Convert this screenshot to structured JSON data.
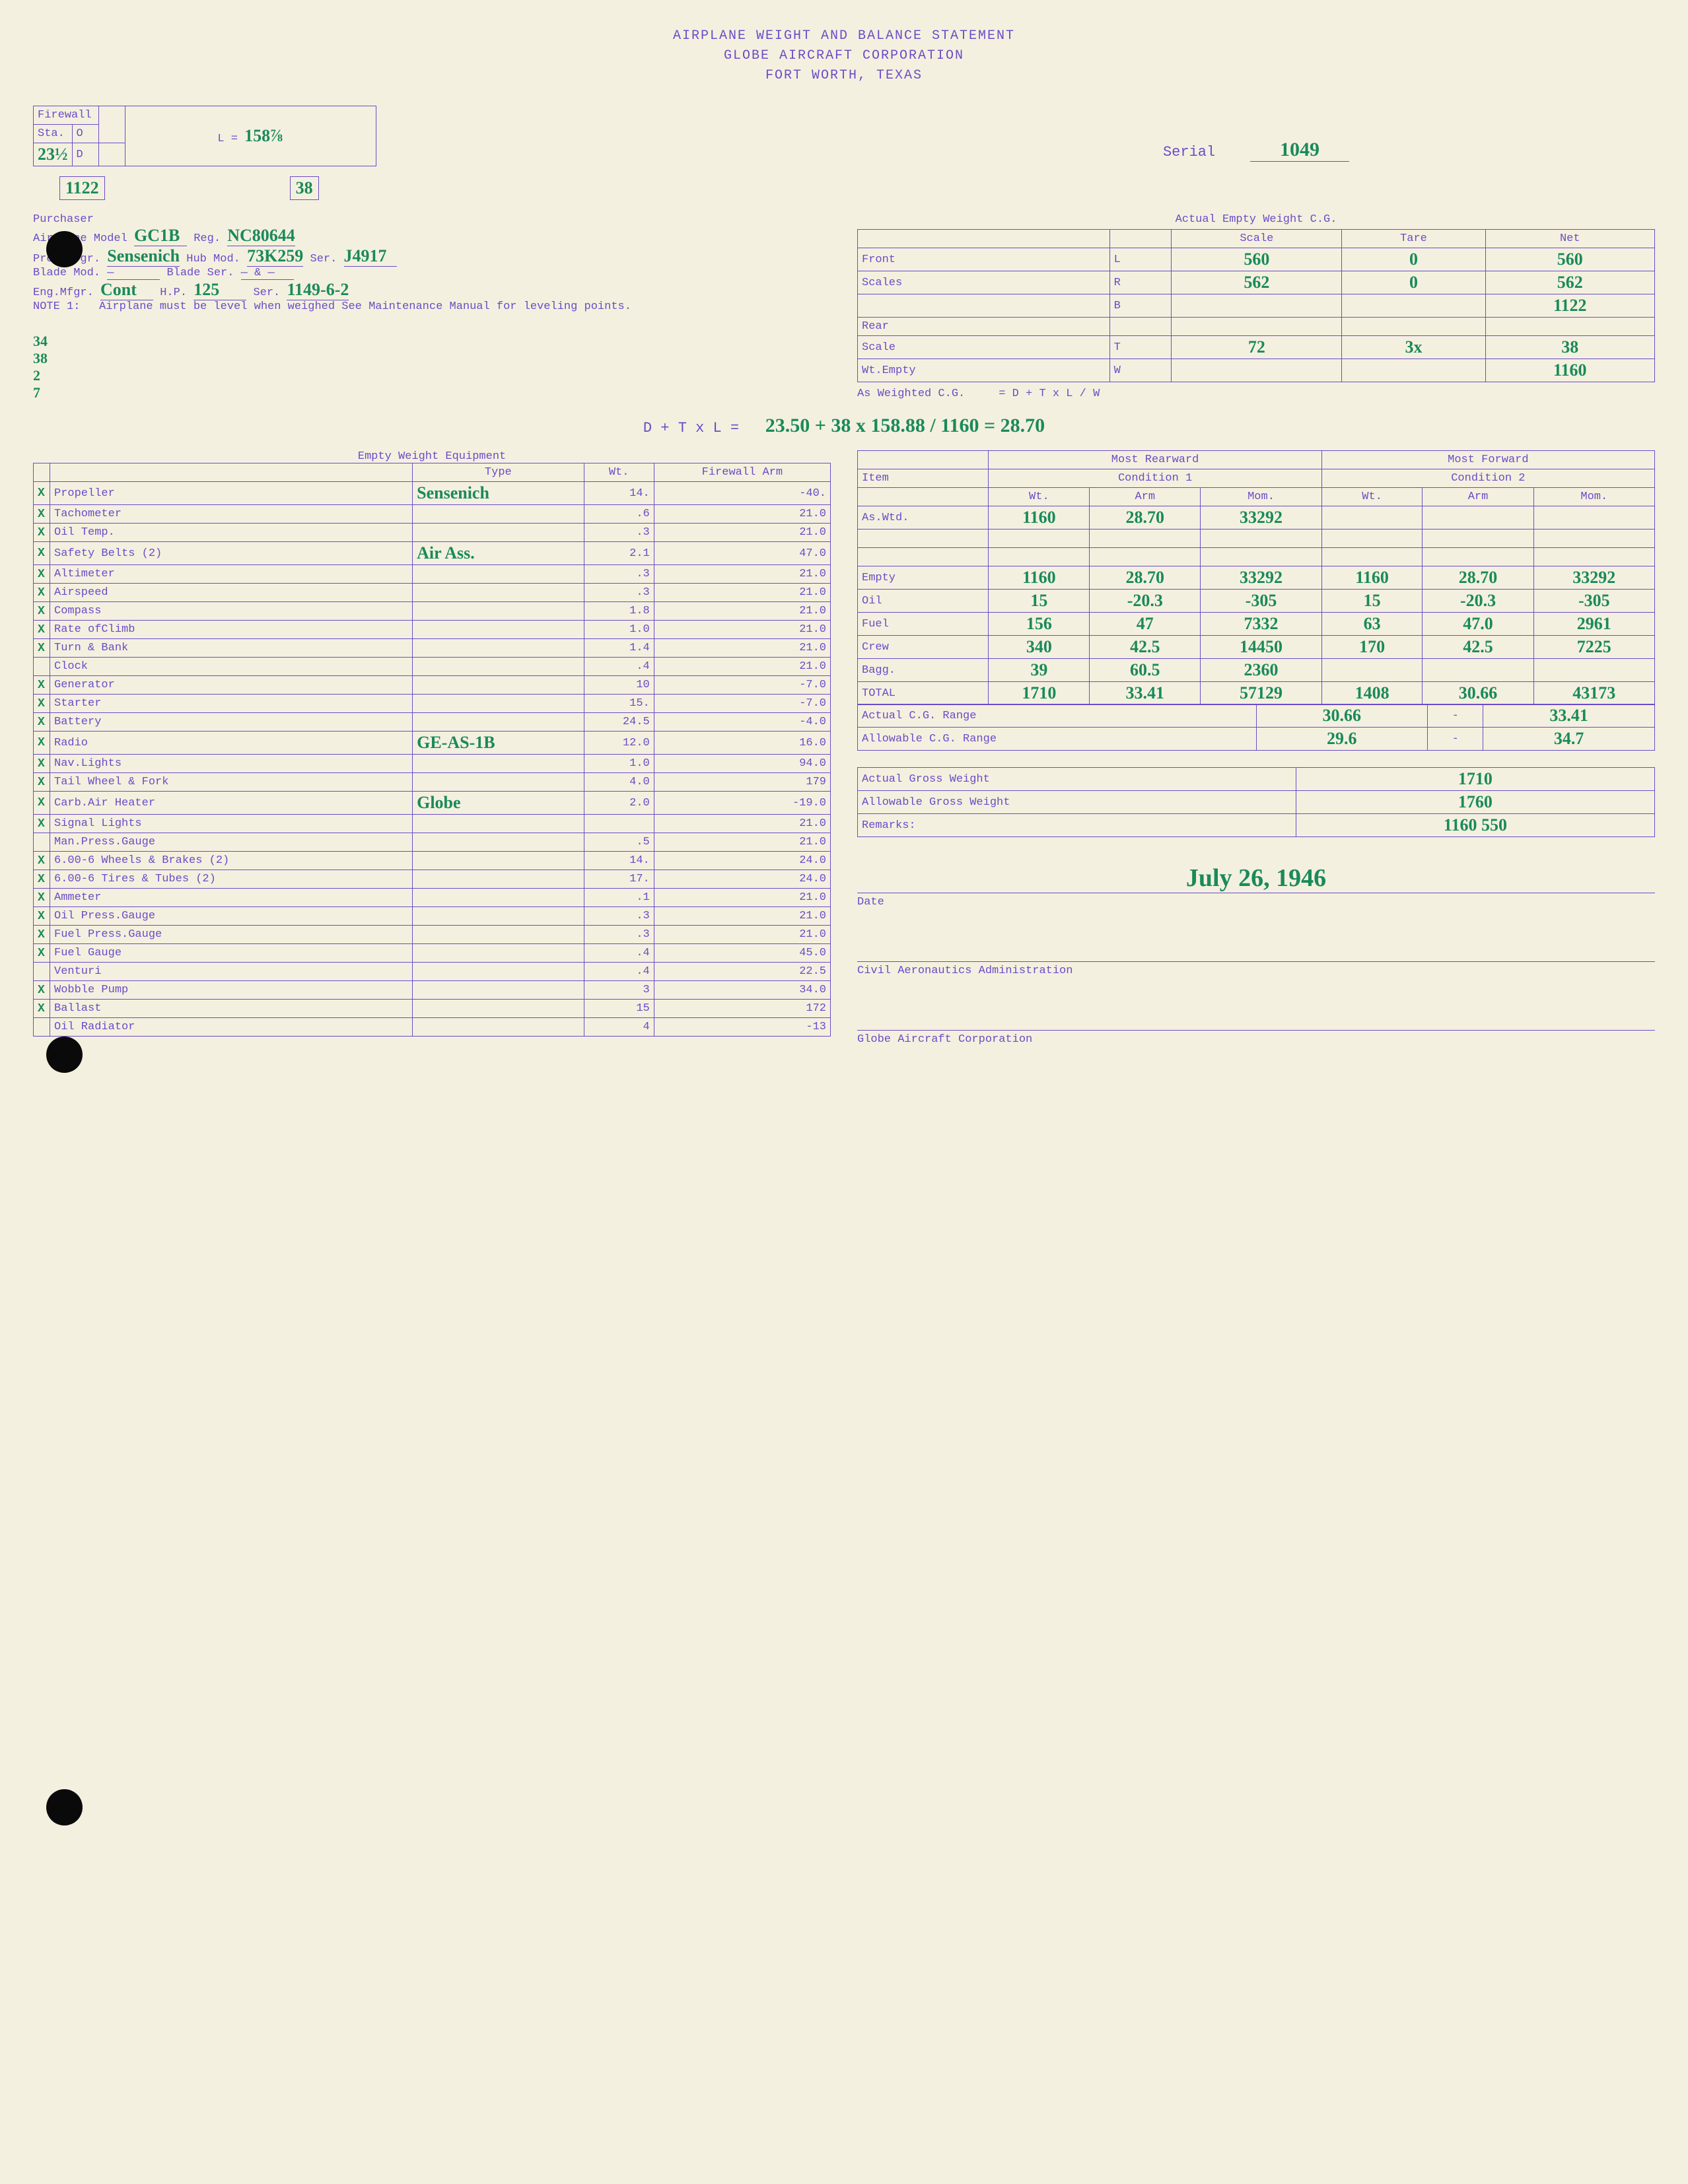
{
  "header": {
    "line1": "AIRPLANE WEIGHT AND BALANCE STATEMENT",
    "line2": "GLOBE AIRCRAFT CORPORATION",
    "line3": "FORT WORTH, TEXAS"
  },
  "firewall": {
    "label": "Firewall",
    "sta_label": "Sta.",
    "sta_value": "23½",
    "o_label": "O",
    "d_label": "D",
    "l_label": "L =",
    "l_value": "158⅞",
    "box1": "1122",
    "box2": "38"
  },
  "serial": {
    "label": "Serial",
    "value": "1049"
  },
  "aircraft": {
    "purchaser_label": "Purchaser",
    "model_label": "Airplane Model",
    "model_value": "GC1B",
    "reg_label": "Reg.",
    "reg_value": "NC80644",
    "prop_mfgr_label": "Prop.Mfgr.",
    "prop_mfgr_value": "Sensenich",
    "hub_mod_label": "Hub Mod.",
    "hub_mod_value": "73K259",
    "ser1_label": "Ser.",
    "ser1_value": "J4917",
    "blade_mod_label": "Blade Mod.",
    "blade_mod_value": "—",
    "blade_ser_label": "Blade Ser.",
    "blade_ser_value": "— & —",
    "eng_mfgr_label": "Eng.Mfgr.",
    "eng_mfgr_value": "Cont",
    "hp_label": "H.P.",
    "hp_value": "125",
    "ser2_label": "Ser.",
    "ser2_value": "1149-6-2",
    "note_label": "NOTE 1:",
    "note_text": "Airplane must be level when weighed See Maintenance Manual for leveling points."
  },
  "side_calc": "34\n38\n2\n7",
  "empty_weight_cg": {
    "title": "Actual Empty Weight C.G.",
    "cols": [
      "",
      "",
      "Scale",
      "Tare",
      "Net"
    ],
    "rows": [
      [
        "Front",
        "L",
        "560",
        "0",
        "560"
      ],
      [
        "Scales",
        "R",
        "562",
        "0",
        "562"
      ],
      [
        "",
        "B",
        "",
        "",
        "1122"
      ],
      [
        "Rear",
        "",
        "",
        "",
        ""
      ],
      [
        "Scale",
        "T",
        "72",
        "3x",
        "38"
      ],
      [
        "Wt.Empty",
        "W",
        "",
        "",
        "1160"
      ]
    ],
    "formula_label": "As Weighted C.G.",
    "formula": "= D + T x L / W"
  },
  "main_calc": {
    "lhs": "D + T x L =",
    "rhs": "23.50 + 38 x 158.88 / 1160 = 28.70"
  },
  "equipment": {
    "title": "Empty Weight Equipment",
    "cols": [
      "",
      "Type",
      "Wt.",
      "Firewall Arm"
    ],
    "rows": [
      {
        "ck": "X",
        "name": "Propeller",
        "type": "Sensenich",
        "wt": "14.",
        "arm": "-40."
      },
      {
        "ck": "X",
        "name": "Tachometer",
        "type": "",
        "wt": ".6",
        "arm": "21.0"
      },
      {
        "ck": "X",
        "name": "Oil Temp.",
        "type": "",
        "wt": ".3",
        "arm": "21.0"
      },
      {
        "ck": "X",
        "name": "Safety Belts (2)",
        "type": "Air Ass.",
        "wt": "2.1",
        "arm": "47.0"
      },
      {
        "ck": "X",
        "name": "Altimeter",
        "type": "",
        "wt": ".3",
        "arm": "21.0"
      },
      {
        "ck": "X",
        "name": "Airspeed",
        "type": "",
        "wt": ".3",
        "arm": "21.0"
      },
      {
        "ck": "X",
        "name": "Compass",
        "type": "",
        "wt": "1.8",
        "arm": "21.0"
      },
      {
        "ck": "X",
        "name": "Rate ofClimb",
        "type": "",
        "wt": "1.0",
        "arm": "21.0"
      },
      {
        "ck": "X",
        "name": "Turn & Bank",
        "type": "",
        "wt": "1.4",
        "arm": "21.0"
      },
      {
        "ck": "",
        "name": "Clock",
        "type": "",
        "wt": ".4",
        "arm": "21.0"
      },
      {
        "ck": "X",
        "name": "Generator",
        "type": "",
        "wt": "10",
        "arm": "-7.0"
      },
      {
        "ck": "X",
        "name": "Starter",
        "type": "",
        "wt": "15.",
        "arm": "-7.0"
      },
      {
        "ck": "X",
        "name": "Battery",
        "type": "",
        "wt": "24.5",
        "arm": "-4.0"
      },
      {
        "ck": "X",
        "name": "Radio",
        "type": "GE-AS-1B",
        "wt": "12.0",
        "arm": "16.0"
      },
      {
        "ck": "X",
        "name": "Nav.Lights",
        "type": "",
        "wt": "1.0",
        "arm": "94.0"
      },
      {
        "ck": "X",
        "name": "Tail Wheel & Fork",
        "type": "",
        "wt": "4.0",
        "arm": "179"
      },
      {
        "ck": "X",
        "name": "Carb.Air Heater",
        "type": "Globe",
        "wt": "2.0",
        "arm": "-19.0"
      },
      {
        "ck": "X",
        "name": "Signal Lights",
        "type": "",
        "wt": "",
        "arm": "21.0"
      },
      {
        "ck": "",
        "name": "Man.Press.Gauge",
        "type": "",
        "wt": ".5",
        "arm": "21.0"
      },
      {
        "ck": "X",
        "name": "6.00-6 Wheels & Brakes (2)",
        "type": "",
        "wt": "14.",
        "arm": "24.0"
      },
      {
        "ck": "X",
        "name": "6.00-6 Tires & Tubes (2)",
        "type": "",
        "wt": "17.",
        "arm": "24.0"
      },
      {
        "ck": "X",
        "name": "Ammeter",
        "type": "",
        "wt": ".1",
        "arm": "21.0"
      },
      {
        "ck": "X",
        "name": "Oil Press.Gauge",
        "type": "",
        "wt": ".3",
        "arm": "21.0"
      },
      {
        "ck": "X",
        "name": "Fuel Press.Gauge",
        "type": "",
        "wt": ".3",
        "arm": "21.0"
      },
      {
        "ck": "X",
        "name": "Fuel Gauge",
        "type": "",
        "wt": ".4",
        "arm": "45.0"
      },
      {
        "ck": "",
        "name": "Venturi",
        "type": "",
        "wt": ".4",
        "arm": "22.5"
      },
      {
        "ck": "X",
        "name": "Wobble Pump",
        "type": "",
        "wt": "3",
        "arm": "34.0"
      },
      {
        "ck": "X",
        "name": "Ballast",
        "type": "",
        "wt": "15",
        "arm": "172"
      },
      {
        "ck": "",
        "name": "Oil Radiator",
        "type": "",
        "wt": "4",
        "arm": "-13"
      }
    ]
  },
  "conditions": {
    "rear_title": "Most Rearward",
    "fwd_title": "Most Forward",
    "item_label": "Item",
    "cond1_label": "Condition 1",
    "cond2_label": "Condition 2",
    "sub_cols": [
      "Wt.",
      "Arm",
      "Mom.",
      "Wt.",
      "Arm",
      "Mom."
    ],
    "rows": [
      {
        "item": "As.Wtd.",
        "c1": [
          "1160",
          "28.70",
          "33292"
        ],
        "c2": [
          "",
          "",
          ""
        ]
      },
      {
        "item": "",
        "c1": [
          "",
          "",
          ""
        ],
        "c2": [
          "",
          "",
          ""
        ]
      },
      {
        "item": "",
        "c1": [
          "",
          "",
          ""
        ],
        "c2": [
          "",
          "",
          ""
        ]
      },
      {
        "item": "Empty",
        "c1": [
          "1160",
          "28.70",
          "33292"
        ],
        "c2": [
          "1160",
          "28.70",
          "33292"
        ]
      },
      {
        "item": "Oil",
        "c1": [
          "15",
          "-20.3",
          "-305"
        ],
        "c2": [
          "15",
          "-20.3",
          "-305"
        ]
      },
      {
        "item": "Fuel",
        "c1": [
          "156",
          "47",
          "7332"
        ],
        "c2": [
          "63",
          "47.0",
          "2961"
        ]
      },
      {
        "item": "Crew",
        "c1": [
          "340",
          "42.5",
          "14450"
        ],
        "c2": [
          "170",
          "42.5",
          "7225"
        ]
      },
      {
        "item": "Bagg.",
        "c1": [
          "39",
          "60.5",
          "2360"
        ],
        "c2": [
          "",
          "",
          ""
        ]
      },
      {
        "item": "TOTAL",
        "c1": [
          "1710",
          "33.41",
          "57129"
        ],
        "c2": [
          "1408",
          "30.66",
          "43173"
        ]
      }
    ],
    "actual_cg_label": "Actual C.G. Range",
    "actual_cg_from": "30.66",
    "actual_cg_to": "33.41",
    "allow_cg_label": "Allowable C.G. Range",
    "allow_cg_from": "29.6",
    "allow_cg_to": "34.7"
  },
  "weights": {
    "actual_label": "Actual Gross Weight",
    "actual_value": "1710",
    "allow_label": "Allowable Gross Weight",
    "allow_value": "1760",
    "remarks_label": "Remarks:",
    "remarks_value": "1160 550"
  },
  "signatures": {
    "date_label": "Date",
    "date_value": "July 26, 1946",
    "caa_label": "Civil Aeronautics Administration",
    "globe_label": "Globe Aircraft Corporation"
  },
  "colors": {
    "paper": "#f4f0df",
    "typed": "#6a4cc9",
    "handwritten": "#1a8a5a",
    "hole": "#0a0a0a"
  }
}
